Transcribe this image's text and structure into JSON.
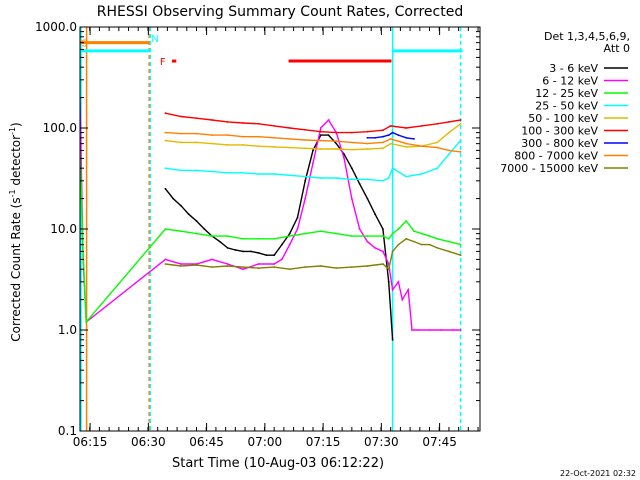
{
  "chart_data": {
    "type": "line",
    "title": "RHESSI Observing Summary Count Rates, Corrected",
    "xlabel": "Start Time (10-Aug-03 06:12:22)",
    "ylabel_main": "Corrected Count Rate (s",
    "ylabel_exp1": "-1",
    "ylabel_mid": " detector",
    "ylabel_exp2": "-1",
    "ylabel_end": ")",
    "yscale": "log",
    "ylim": [
      0.1,
      1000
    ],
    "xlim_minutes": [
      0,
      103
    ],
    "x_unit": "minutes since 06:12:22",
    "y_ticks": [
      {
        "v": 0.1,
        "label": "0.1"
      },
      {
        "v": 1,
        "label": "1.0"
      },
      {
        "v": 10,
        "label": "10.0"
      },
      {
        "v": 100,
        "label": "100.0"
      },
      {
        "v": 1000,
        "label": "1000.0"
      }
    ],
    "x_ticks": [
      {
        "v": 2.6,
        "label": "06:15"
      },
      {
        "v": 17.6,
        "label": "06:30"
      },
      {
        "v": 32.6,
        "label": "06:45"
      },
      {
        "v": 47.6,
        "label": "07:00"
      },
      {
        "v": 62.6,
        "label": "07:15"
      },
      {
        "v": 77.6,
        "label": "07:30"
      },
      {
        "v": 92.6,
        "label": "07:45"
      }
    ],
    "legend": {
      "header": [
        "Det 1,3,4,5,6,9,",
        "Att 0"
      ],
      "placement": "right"
    },
    "series": [
      {
        "name": "3 - 6 keV",
        "color": "#000000",
        "x": [
          22,
          24,
          26,
          28,
          30,
          32,
          34,
          36,
          38,
          40,
          42,
          44,
          46,
          48,
          50,
          52,
          54,
          56,
          58,
          60,
          62,
          64,
          66,
          68,
          70,
          72,
          74,
          76,
          78,
          79.5,
          80.5
        ],
        "y": [
          25,
          20,
          17,
          14,
          12,
          10,
          8.5,
          7.5,
          6.5,
          6.2,
          6.0,
          6.0,
          5.8,
          5.5,
          5.5,
          7,
          9,
          13,
          30,
          60,
          85,
          85,
          70,
          55,
          40,
          28,
          20,
          14,
          10,
          3,
          0.8
        ]
      },
      {
        "name": "6 - 12 keV",
        "color": "#ff00ff",
        "x": [
          0,
          0.8,
          1.6,
          22,
          26,
          30,
          34,
          38,
          42,
          46,
          50,
          52,
          54,
          56,
          58,
          60,
          62,
          64,
          66,
          68,
          70,
          72,
          74,
          76,
          78,
          79.5,
          80.5,
          82,
          83,
          84.5,
          85.5,
          87,
          90,
          93,
          96,
          98
        ],
        "y": [
          200,
          5,
          1.2,
          5,
          4.5,
          4.5,
          5,
          4.5,
          4,
          4.5,
          4.5,
          5,
          7,
          10,
          20,
          45,
          100,
          120,
          90,
          50,
          20,
          10,
          7.5,
          6.5,
          6,
          4.5,
          2.5,
          3,
          2,
          2.5,
          1.0,
          1.0,
          1.0,
          1.0,
          1.0,
          1.0
        ]
      },
      {
        "name": "12 - 25 keV",
        "color": "#00ff00",
        "x": [
          0,
          0.8,
          1.6,
          22,
          26,
          30,
          34,
          38,
          42,
          46,
          50,
          54,
          58,
          62,
          66,
          70,
          74,
          78,
          79.5,
          80.5,
          82,
          84,
          86,
          88,
          90,
          92,
          95,
          98
        ],
        "y": [
          60,
          6,
          1.2,
          10,
          9.5,
          9,
          8.5,
          8.5,
          8,
          8,
          8,
          8.5,
          9,
          9.5,
          9,
          8.5,
          8.5,
          8.5,
          8,
          9,
          10,
          12,
          9.5,
          9,
          8.5,
          8,
          7.5,
          7
        ]
      },
      {
        "name": "25 - 50 keV",
        "color": "#00ffff",
        "x": [
          22,
          26,
          30,
          34,
          38,
          42,
          46,
          50,
          54,
          58,
          62,
          66,
          70,
          74,
          78,
          79.5,
          80.5,
          84,
          88,
          92,
          95,
          98
        ],
        "y": [
          40,
          38,
          38,
          37,
          36,
          36,
          35,
          35,
          34,
          33,
          32,
          32,
          31,
          31,
          30,
          32,
          40,
          33,
          35,
          40,
          55,
          75
        ]
      },
      {
        "name": "50 - 100 keV",
        "color": "#e6b800",
        "x": [
          22,
          26,
          30,
          34,
          38,
          42,
          46,
          50,
          54,
          58,
          62,
          66,
          70,
          74,
          78,
          80,
          84,
          88,
          92,
          95,
          98
        ],
        "y": [
          75,
          72,
          72,
          70,
          68,
          68,
          66,
          65,
          64,
          63,
          62,
          62,
          61,
          62,
          63,
          70,
          65,
          66,
          72,
          90,
          110
        ]
      },
      {
        "name": "100 - 300 keV",
        "color": "#ff0000",
        "x": [
          22,
          26,
          30,
          34,
          38,
          42,
          46,
          50,
          54,
          58,
          62,
          66,
          70,
          74,
          78,
          80,
          84,
          88,
          92,
          95,
          98
        ],
        "y": [
          140,
          130,
          125,
          120,
          115,
          112,
          110,
          105,
          100,
          96,
          92,
          90,
          90,
          92,
          95,
          105,
          100,
          105,
          110,
          115,
          120
        ]
      },
      {
        "name": "300 - 800 keV",
        "color": "#0000ff",
        "x": [
          74,
          76,
          78,
          79.5,
          80.5,
          82,
          84,
          86
        ],
        "y": [
          80,
          80,
          82,
          85,
          90,
          85,
          80,
          78
        ]
      },
      {
        "name": "800 - 7000 keV",
        "color": "#ff8000",
        "x": [
          22,
          26,
          30,
          34,
          38,
          42,
          46,
          50,
          54,
          58,
          62,
          66,
          70,
          74,
          78,
          80,
          84,
          88,
          92,
          95,
          98
        ],
        "y": [
          90,
          88,
          88,
          85,
          85,
          82,
          82,
          80,
          78,
          76,
          75,
          74,
          72,
          70,
          72,
          78,
          70,
          66,
          64,
          60,
          58
        ]
      },
      {
        "name": "7000 - 15000 keV",
        "color": "#808000",
        "x": [
          22,
          26,
          30,
          34,
          38,
          42,
          46,
          50,
          54,
          58,
          62,
          66,
          70,
          74,
          78,
          79.5,
          80.5,
          82,
          84,
          86,
          88,
          90,
          92,
          95,
          98
        ],
        "y": [
          4.5,
          4.3,
          4.4,
          4.2,
          4.3,
          4.2,
          4.1,
          4.2,
          4.0,
          4.2,
          4.3,
          4.1,
          4.2,
          4.3,
          4.5,
          4.0,
          6,
          7,
          8,
          7.5,
          7,
          7,
          6.5,
          6,
          5.5
        ]
      }
    ],
    "status_bars": [
      {
        "label": "",
        "color": "#00ffff",
        "x0": 0,
        "x1": 17.9,
        "y": 580
      },
      {
        "label": "",
        "color": "#ff8000",
        "x0": 0,
        "x1": 17.9,
        "y": 700
      },
      {
        "label": "",
        "color": "#00ffff",
        "x0": 80.5,
        "x1": 98.5,
        "y": 580
      },
      {
        "label": "",
        "color": "#ff0000",
        "x0": 53.7,
        "x1": 80.2,
        "y": 460
      },
      {
        "label": "",
        "color": "#ff0000",
        "x0": 23.7,
        "x1": 24.8,
        "y": 460
      }
    ],
    "flag_labels": [
      {
        "text": "N",
        "color": "#00ffff",
        "x": 18.1,
        "y": 780
      },
      {
        "text": "F",
        "color": "#ff0000",
        "x": 20.3,
        "y": 460
      },
      {
        "text": "S",
        "color": "#ff8000",
        "x": 0.1,
        "y": 700
      }
    ],
    "vlines": [
      {
        "x": 0.25,
        "color": "#00ffff",
        "style": "solid"
      },
      {
        "x": 1.7,
        "color": "#ff8000",
        "style": "solid"
      },
      {
        "x": 17.8,
        "color": "#ff8000",
        "style": "dashed"
      },
      {
        "x": 18.1,
        "color": "#00ffff",
        "style": "dashed"
      },
      {
        "x": 80.5,
        "color": "#00ffff",
        "style": "solid"
      },
      {
        "x": 98.0,
        "color": "#00ffff",
        "style": "dashed"
      }
    ]
  },
  "footer": {
    "timestamp": "22-Oct-2021 02:32"
  }
}
